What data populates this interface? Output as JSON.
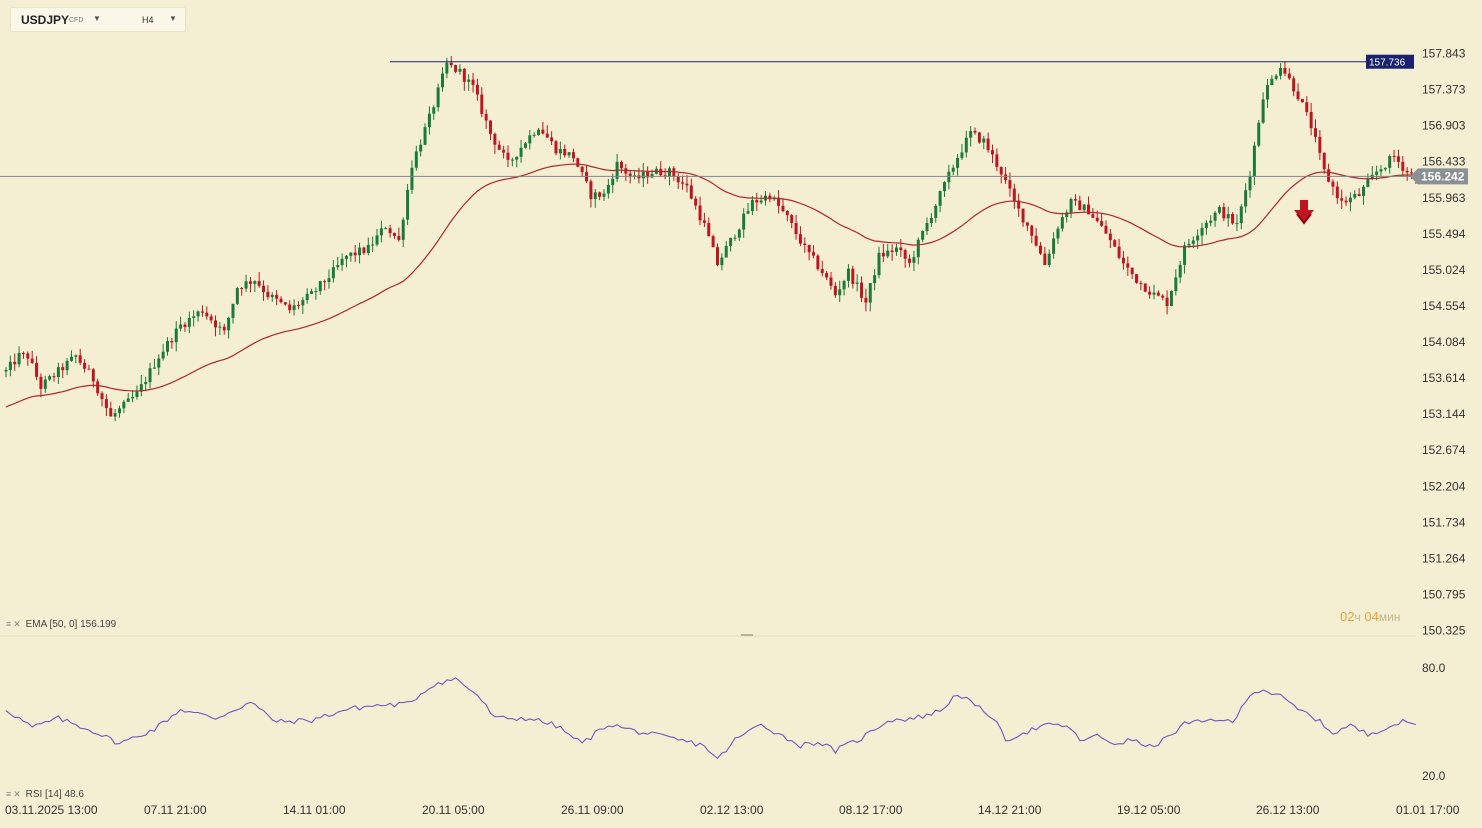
{
  "header": {
    "symbol": "USDJPY",
    "symbol_tag": "CFD",
    "timeframe": "H4"
  },
  "price_axis": {
    "ticks": [
      "157.843",
      "157.373",
      "156.903",
      "156.433",
      "155.963",
      "155.494",
      "155.024",
      "154.554",
      "154.084",
      "153.614",
      "153.144",
      "152.674",
      "152.204",
      "151.734",
      "151.264",
      "150.795",
      "150.325"
    ],
    "current_price": "156.242",
    "resistance_price": "157.736"
  },
  "time_axis": [
    "03.11.2025  13:00",
    "07.11  21:00",
    "14.11  01:00",
    "20.11  05:00",
    "26.11  09:00",
    "02.12  13:00",
    "08.12  17:00",
    "14.12  21:00",
    "19.12  05:00",
    "26.12  13:00",
    "01.01  17:00"
  ],
  "indicators": {
    "ema": {
      "label": "EMA",
      "params": "[50, 0]",
      "value": "156.199"
    },
    "rsi": {
      "label": "RSI",
      "params": "[14]",
      "value": "48.6",
      "levels": [
        "80.0",
        "20.0"
      ]
    }
  },
  "countdown": {
    "hours": "02",
    "hours_unit": "ч",
    "minutes": "04",
    "minutes_unit": "мин"
  },
  "colors": {
    "up": "#1a7a3a",
    "down": "#c0141e",
    "ema": "#b3272a",
    "rsi": "#6e5bbf",
    "resistance": "#1a2270",
    "background": "#f4efd3"
  },
  "chart_data": {
    "type": "candlestick",
    "timeframe": "H4",
    "y_range": [
      150.325,
      157.843
    ],
    "rsi_levels": [
      80,
      20
    ],
    "anchors": [
      {
        "i": 0,
        "p": 153.7
      },
      {
        "i": 3,
        "p": 153.9
      },
      {
        "i": 5,
        "p": 153.9
      },
      {
        "i": 8,
        "p": 153.5
      },
      {
        "i": 12,
        "p": 153.7
      },
      {
        "i": 16,
        "p": 153.9
      },
      {
        "i": 20,
        "p": 153.6
      },
      {
        "i": 24,
        "p": 153.1
      },
      {
        "i": 30,
        "p": 153.4
      },
      {
        "i": 35,
        "p": 153.9
      },
      {
        "i": 40,
        "p": 154.3
      },
      {
        "i": 45,
        "p": 154.5
      },
      {
        "i": 50,
        "p": 154.2
      },
      {
        "i": 53,
        "p": 154.8
      },
      {
        "i": 57,
        "p": 154.9
      },
      {
        "i": 60,
        "p": 154.7
      },
      {
        "i": 65,
        "p": 154.5
      },
      {
        "i": 70,
        "p": 154.7
      },
      {
        "i": 75,
        "p": 155.0
      },
      {
        "i": 78,
        "p": 155.2
      },
      {
        "i": 83,
        "p": 155.3
      },
      {
        "i": 87,
        "p": 155.6
      },
      {
        "i": 90,
        "p": 155.4
      },
      {
        "i": 93,
        "p": 156.4
      },
      {
        "i": 97,
        "p": 157.0
      },
      {
        "i": 101,
        "p": 157.7
      },
      {
        "i": 104,
        "p": 157.6
      },
      {
        "i": 107,
        "p": 157.4
      },
      {
        "i": 111,
        "p": 156.8
      },
      {
        "i": 115,
        "p": 156.4
      },
      {
        "i": 119,
        "p": 156.7
      },
      {
        "i": 122,
        "p": 156.9
      },
      {
        "i": 126,
        "p": 156.6
      },
      {
        "i": 130,
        "p": 156.5
      },
      {
        "i": 134,
        "p": 156.0
      },
      {
        "i": 137,
        "p": 156.0
      },
      {
        "i": 140,
        "p": 156.4
      },
      {
        "i": 144,
        "p": 156.2
      },
      {
        "i": 148,
        "p": 156.3
      },
      {
        "i": 152,
        "p": 156.3
      },
      {
        "i": 156,
        "p": 156.1
      },
      {
        "i": 160,
        "p": 155.6
      },
      {
        "i": 163,
        "p": 155.1
      },
      {
        "i": 167,
        "p": 155.5
      },
      {
        "i": 171,
        "p": 155.9
      },
      {
        "i": 175,
        "p": 156.0
      },
      {
        "i": 179,
        "p": 155.7
      },
      {
        "i": 183,
        "p": 155.3
      },
      {
        "i": 187,
        "p": 155.0
      },
      {
        "i": 190,
        "p": 154.7
      },
      {
        "i": 193,
        "p": 155.0
      },
      {
        "i": 197,
        "p": 154.6
      },
      {
        "i": 200,
        "p": 155.2
      },
      {
        "i": 204,
        "p": 155.3
      },
      {
        "i": 207,
        "p": 155.1
      },
      {
        "i": 210,
        "p": 155.5
      },
      {
        "i": 214,
        "p": 156.0
      },
      {
        "i": 218,
        "p": 156.5
      },
      {
        "i": 221,
        "p": 156.8
      },
      {
        "i": 224,
        "p": 156.7
      },
      {
        "i": 228,
        "p": 156.3
      },
      {
        "i": 231,
        "p": 155.9
      },
      {
        "i": 235,
        "p": 155.5
      },
      {
        "i": 238,
        "p": 155.1
      },
      {
        "i": 241,
        "p": 155.6
      },
      {
        "i": 244,
        "p": 155.9
      },
      {
        "i": 248,
        "p": 155.8
      },
      {
        "i": 252,
        "p": 155.5
      },
      {
        "i": 256,
        "p": 155.1
      },
      {
        "i": 259,
        "p": 154.9
      },
      {
        "i": 263,
        "p": 154.7
      },
      {
        "i": 266,
        "p": 154.6
      },
      {
        "i": 270,
        "p": 155.3
      },
      {
        "i": 274,
        "p": 155.6
      },
      {
        "i": 278,
        "p": 155.8
      },
      {
        "i": 282,
        "p": 155.6
      },
      {
        "i": 285,
        "p": 156.3
      },
      {
        "i": 288,
        "p": 157.3
      },
      {
        "i": 292,
        "p": 157.7
      },
      {
        "i": 296,
        "p": 157.3
      },
      {
        "i": 299,
        "p": 156.9
      },
      {
        "i": 302,
        "p": 156.3
      },
      {
        "i": 306,
        "p": 155.9
      },
      {
        "i": 310,
        "p": 156.0
      },
      {
        "i": 314,
        "p": 156.3
      },
      {
        "i": 318,
        "p": 156.5
      },
      {
        "i": 321,
        "p": 156.3
      },
      {
        "i": 323,
        "p": 156.24
      }
    ],
    "rsi_anchors": [
      {
        "i": 0,
        "v": 57
      },
      {
        "i": 6,
        "v": 47
      },
      {
        "i": 12,
        "v": 52
      },
      {
        "i": 20,
        "v": 45
      },
      {
        "i": 26,
        "v": 38
      },
      {
        "i": 34,
        "v": 46
      },
      {
        "i": 40,
        "v": 57
      },
      {
        "i": 48,
        "v": 52
      },
      {
        "i": 56,
        "v": 61
      },
      {
        "i": 62,
        "v": 50
      },
      {
        "i": 70,
        "v": 51
      },
      {
        "i": 78,
        "v": 57
      },
      {
        "i": 84,
        "v": 59
      },
      {
        "i": 92,
        "v": 60
      },
      {
        "i": 98,
        "v": 71
      },
      {
        "i": 103,
        "v": 74
      },
      {
        "i": 108,
        "v": 65
      },
      {
        "i": 112,
        "v": 52
      },
      {
        "i": 120,
        "v": 52
      },
      {
        "i": 126,
        "v": 48
      },
      {
        "i": 132,
        "v": 38
      },
      {
        "i": 138,
        "v": 49
      },
      {
        "i": 144,
        "v": 45
      },
      {
        "i": 150,
        "v": 42
      },
      {
        "i": 160,
        "v": 37
      },
      {
        "i": 163,
        "v": 29
      },
      {
        "i": 167,
        "v": 40
      },
      {
        "i": 173,
        "v": 49
      },
      {
        "i": 178,
        "v": 42
      },
      {
        "i": 182,
        "v": 37
      },
      {
        "i": 186,
        "v": 39
      },
      {
        "i": 190,
        "v": 34
      },
      {
        "i": 196,
        "v": 41
      },
      {
        "i": 202,
        "v": 51
      },
      {
        "i": 208,
        "v": 52
      },
      {
        "i": 214,
        "v": 56
      },
      {
        "i": 218,
        "v": 66
      },
      {
        "i": 222,
        "v": 59
      },
      {
        "i": 226,
        "v": 53
      },
      {
        "i": 229,
        "v": 40
      },
      {
        "i": 233,
        "v": 44
      },
      {
        "i": 238,
        "v": 48
      },
      {
        "i": 243,
        "v": 48
      },
      {
        "i": 246,
        "v": 40
      },
      {
        "i": 250,
        "v": 42
      },
      {
        "i": 254,
        "v": 38
      },
      {
        "i": 258,
        "v": 40
      },
      {
        "i": 262,
        "v": 36
      },
      {
        "i": 266,
        "v": 41
      },
      {
        "i": 270,
        "v": 49
      },
      {
        "i": 274,
        "v": 50
      },
      {
        "i": 278,
        "v": 52
      },
      {
        "i": 281,
        "v": 49
      },
      {
        "i": 285,
        "v": 66
      },
      {
        "i": 288,
        "v": 68
      },
      {
        "i": 292,
        "v": 64
      },
      {
        "i": 296,
        "v": 57
      },
      {
        "i": 300,
        "v": 52
      },
      {
        "i": 304,
        "v": 44
      },
      {
        "i": 308,
        "v": 48
      },
      {
        "i": 312,
        "v": 43
      },
      {
        "i": 316,
        "v": 47
      },
      {
        "i": 320,
        "v": 50
      },
      {
        "i": 323,
        "v": 48.6
      }
    ]
  }
}
